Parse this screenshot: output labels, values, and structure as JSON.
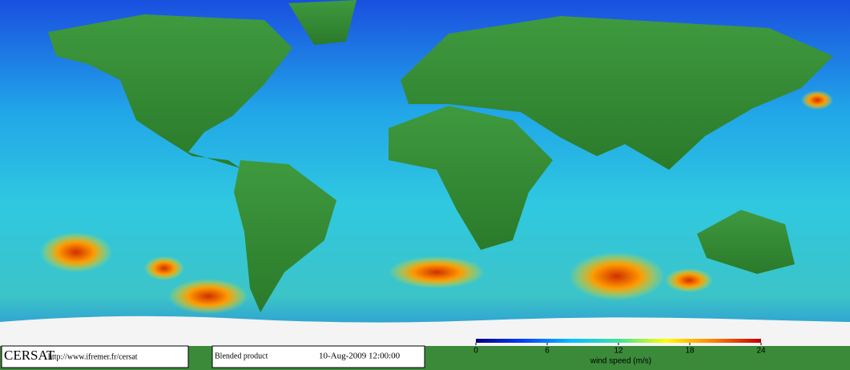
{
  "footer": {
    "logo": "CERSAT",
    "url": "http://www.ifremer.fr/cersat",
    "product": "Blended product",
    "date": "10-Aug-2009 12:00:00"
  },
  "colorbar": {
    "label": "wind speed (m/s)",
    "range": [
      0,
      24
    ],
    "ticks": [
      0,
      6,
      12,
      18,
      24
    ],
    "colors": [
      "#000080",
      "#0040ff",
      "#00c0ff",
      "#40e0a0",
      "#ffff00",
      "#ff8000",
      "#c00000"
    ]
  }
}
